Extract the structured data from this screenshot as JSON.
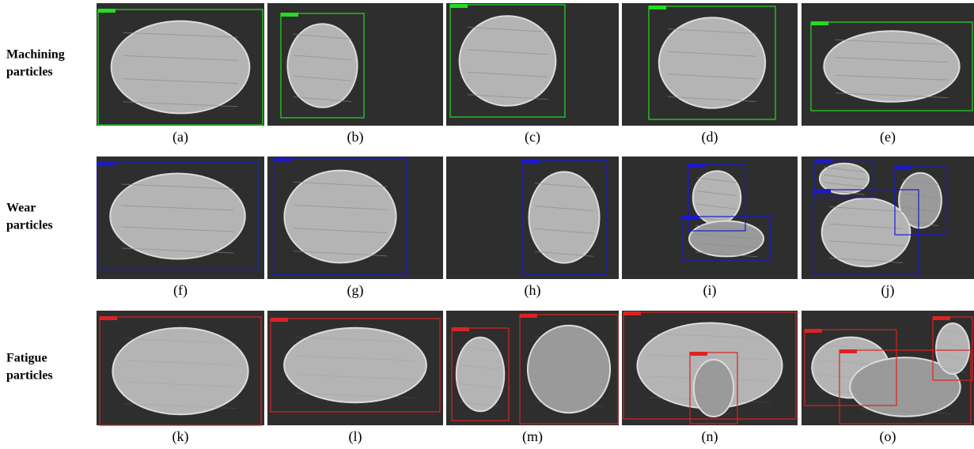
{
  "rows": [
    {
      "label": "Machining particles",
      "box_color": "#22dd22",
      "panels": [
        {
          "caption": "(a)"
        },
        {
          "caption": "(b)"
        },
        {
          "caption": "(c)"
        },
        {
          "caption": "(d)"
        },
        {
          "caption": "(e)"
        }
      ]
    },
    {
      "label": "Wear particles",
      "box_color": "#1a1acc",
      "panels": [
        {
          "caption": "(f)"
        },
        {
          "caption": "(g)"
        },
        {
          "caption": "(h)"
        },
        {
          "caption": "(i)"
        },
        {
          "caption": "(j)"
        }
      ]
    },
    {
      "label": "Fatigue particles",
      "box_color": "#dd2222",
      "panels": [
        {
          "caption": "(k)"
        },
        {
          "caption": "(l)"
        },
        {
          "caption": "(m)"
        },
        {
          "caption": "(n)"
        },
        {
          "caption": "(o)"
        }
      ]
    }
  ]
}
